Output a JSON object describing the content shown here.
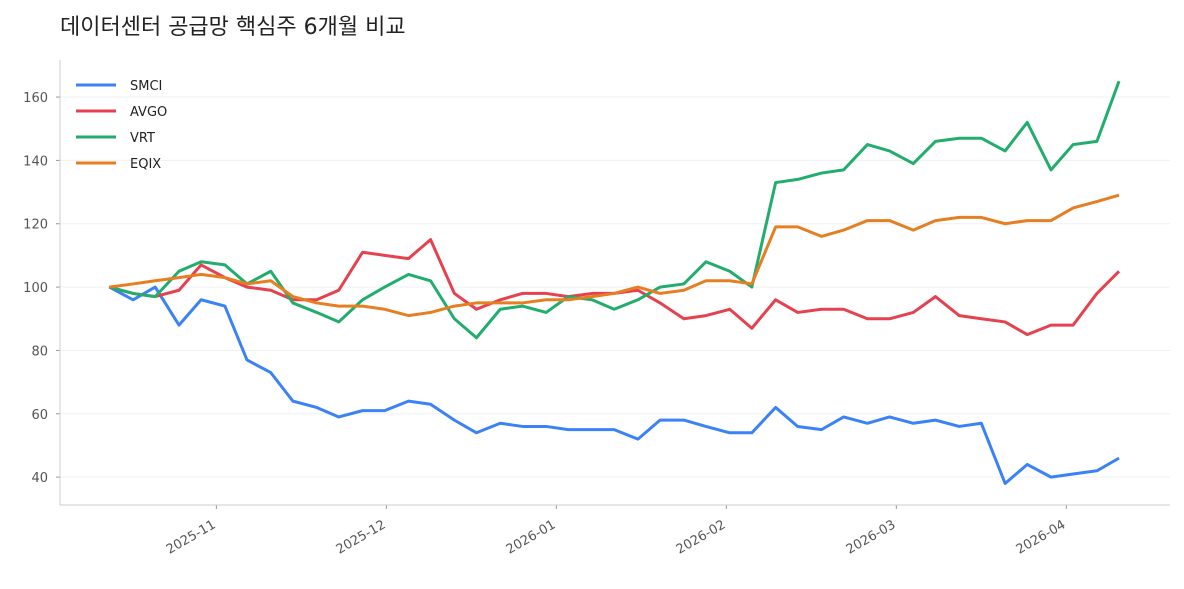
{
  "chart_data": {
    "type": "line",
    "title": "데이터센터 공급망 핵심주 6개월 비교",
    "x": [
      0.37,
      0.51,
      0.64,
      0.78,
      0.91,
      1.05,
      1.18,
      1.32,
      1.45,
      1.59,
      1.72,
      1.86,
      1.99,
      2.13,
      2.26,
      2.4,
      2.53,
      2.67,
      2.8,
      2.94,
      3.07,
      3.21,
      3.34,
      3.48,
      3.61,
      3.75,
      3.88,
      4.02,
      4.15,
      4.29,
      4.42,
      4.56,
      4.69,
      4.83,
      4.96,
      5.1,
      5.23,
      5.37,
      5.5,
      5.64,
      5.77,
      5.91,
      6.04,
      6.18,
      6.31
    ],
    "series": [
      {
        "name": "SMCI",
        "color": "#3b82f6",
        "values": [
          100,
          96,
          100,
          88,
          96,
          94,
          77,
          73,
          64,
          62,
          59,
          61,
          61,
          64,
          63,
          58,
          54,
          57,
          56,
          56,
          55,
          55,
          55,
          52,
          58,
          58,
          56,
          54,
          54,
          62,
          56,
          55,
          59,
          57,
          59,
          57,
          58,
          56,
          57,
          38,
          44,
          40,
          41,
          42,
          46
        ]
      },
      {
        "name": "AVGO",
        "color": "#e5414f",
        "values": [
          100,
          98,
          97,
          99,
          107,
          103,
          100,
          99,
          96,
          96,
          99,
          111,
          110,
          109,
          115,
          98,
          93,
          96,
          98,
          98,
          97,
          98,
          98,
          99,
          95,
          90,
          91,
          93,
          87,
          96,
          92,
          93,
          93,
          90,
          90,
          92,
          97,
          91,
          90,
          89,
          85,
          88,
          88,
          98,
          105
        ]
      },
      {
        "name": "VRT",
        "color": "#22ad6e",
        "values": [
          100,
          98,
          97,
          105,
          108,
          107,
          101,
          105,
          95,
          92,
          89,
          96,
          100,
          104,
          102,
          90,
          84,
          93,
          94,
          92,
          97,
          96,
          93,
          96,
          100,
          101,
          108,
          105,
          100,
          133,
          134,
          136,
          137,
          145,
          143,
          139,
          146,
          147,
          147,
          143,
          152,
          137,
          145,
          146,
          165
        ]
      },
      {
        "name": "EQIX",
        "color": "#e67e22",
        "values": [
          100,
          101,
          102,
          103,
          104,
          103,
          101,
          102,
          97,
          95,
          94,
          94,
          93,
          91,
          92,
          94,
          95,
          95,
          95,
          96,
          96,
          97,
          98,
          100,
          98,
          99,
          102,
          102,
          101,
          119,
          119,
          116,
          118,
          121,
          121,
          118,
          121,
          122,
          122,
          120,
          121,
          121,
          125,
          127,
          129
        ]
      }
    ],
    "xlim": [
      0.08,
      6.61
    ],
    "xticks": [
      {
        "value": 1,
        "label": "2025-11"
      },
      {
        "value": 2,
        "label": "2025-12"
      },
      {
        "value": 3,
        "label": "2026-01"
      },
      {
        "value": 4,
        "label": "2026-02"
      },
      {
        "value": 5,
        "label": "2026-03"
      },
      {
        "value": 6,
        "label": "2026-04"
      }
    ],
    "ylim": [
      31.2,
      171.7
    ],
    "yticks": [
      40,
      60,
      80,
      100,
      120,
      140,
      160
    ],
    "grid": true,
    "legend": "upper left"
  }
}
